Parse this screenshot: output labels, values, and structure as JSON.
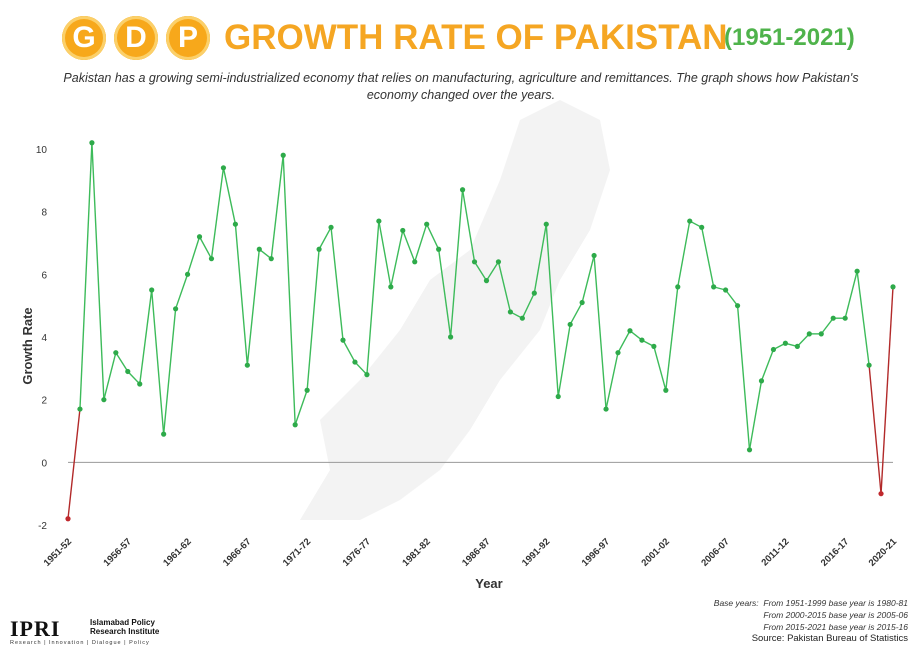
{
  "header": {
    "badges": [
      "G",
      "D",
      "P"
    ],
    "title": "GROWTH RATE OF PAKISTAN",
    "years": "(1951-2021)",
    "subtitle": "Pakistan has a growing semi-industrialized economy that relies on manufacturing, agriculture and remittances. The graph shows how Pakistan's economy changed over the years."
  },
  "colors": {
    "title": "#f5a623",
    "years": "#4fb34b",
    "line": "#3dbb5a",
    "point": "#2eaa4a",
    "negative_point": "#c0282d",
    "negative_line": "#b22a2a",
    "zero_line": "#999999"
  },
  "chart_data": {
    "type": "line",
    "title": "GROWTH RATE OF PAKISTAN",
    "xlabel": "Year",
    "ylabel": "Growth Rate",
    "ylim": [
      -2,
      10
    ],
    "yticks": [
      -2,
      0,
      2,
      4,
      6,
      8,
      10
    ],
    "grid": false,
    "legend": "none",
    "x_start_label": "1951-52",
    "x_tick_labels": [
      {
        "index": 0,
        "label": "1951-52"
      },
      {
        "index": 5,
        "label": "1956-57"
      },
      {
        "index": 10,
        "label": "1961-62"
      },
      {
        "index": 15,
        "label": "1966-67"
      },
      {
        "index": 20,
        "label": "1971-72"
      },
      {
        "index": 25,
        "label": "1976-77"
      },
      {
        "index": 30,
        "label": "1981-82"
      },
      {
        "index": 35,
        "label": "1986-87"
      },
      {
        "index": 40,
        "label": "1991-92"
      },
      {
        "index": 45,
        "label": "1996-97"
      },
      {
        "index": 50,
        "label": "2001-02"
      },
      {
        "index": 55,
        "label": "2006-07"
      },
      {
        "index": 60,
        "label": "2011-12"
      },
      {
        "index": 65,
        "label": "2016-17"
      },
      {
        "index": 69,
        "label": "2020-21"
      }
    ],
    "values": [
      -1.8,
      1.7,
      10.2,
      2.0,
      3.5,
      2.9,
      2.5,
      5.5,
      0.9,
      4.9,
      6.0,
      7.2,
      6.5,
      9.4,
      7.6,
      3.1,
      6.8,
      6.5,
      9.8,
      1.2,
      2.3,
      6.8,
      7.5,
      3.9,
      3.2,
      2.8,
      7.7,
      5.6,
      7.4,
      6.4,
      7.6,
      6.8,
      4.0,
      8.7,
      6.4,
      5.8,
      6.4,
      4.8,
      4.6,
      5.4,
      7.6,
      2.1,
      4.4,
      5.1,
      6.6,
      1.7,
      3.5,
      4.2,
      3.9,
      3.7,
      2.3,
      5.6,
      7.7,
      7.5,
      5.6,
      5.5,
      5.0,
      0.4,
      2.6,
      3.6,
      3.8,
      3.7,
      4.1,
      4.1,
      4.6,
      4.6,
      6.1,
      3.1,
      -1.0,
      5.6
    ]
  },
  "notes": {
    "base_years_label": "Base years:",
    "lines": [
      "From 1951-1999 base year is 1980-81",
      "From 2000-2015 base year is 2005-06",
      "From 2015-2021 base year is 2015-16"
    ],
    "source": "Source: Pakistan Bureau of Statistics"
  },
  "logo": {
    "acronym": "IPRI",
    "name_line1": "Islamabad Policy",
    "name_line2": "Research Institute",
    "tagline": "Research | Innovation | Dialogue | Policy"
  }
}
